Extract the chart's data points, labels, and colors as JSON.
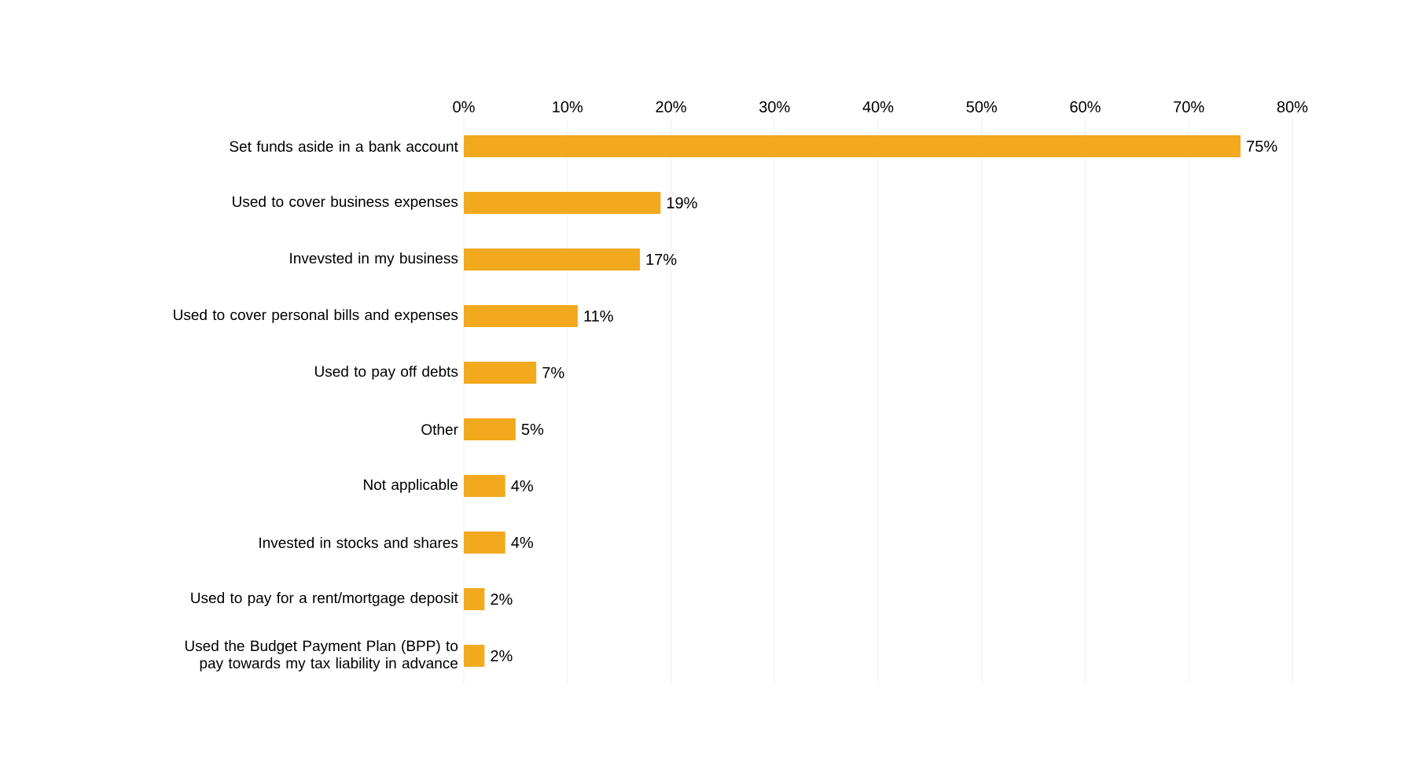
{
  "chart_data": {
    "type": "bar",
    "orientation": "horizontal",
    "categories": [
      "Set funds aside in a bank account",
      "Used to cover business expenses",
      "Invevsted in my business",
      "Used to cover personal bills and expenses",
      "Used to pay off debts",
      "Other",
      "Not applicable",
      "Invested in stocks and shares",
      "Used to pay for a rent/mortgage deposit",
      "Used the Budget Payment Plan (BPP) to pay towards my tax liability in advance"
    ],
    "values": [
      75,
      19,
      17,
      11,
      7,
      5,
      4,
      4,
      2,
      2
    ],
    "value_labels": [
      "75%",
      "19%",
      "17%",
      "11%",
      "7%",
      "5%",
      "4%",
      "4%",
      "2%",
      "2%"
    ],
    "color": "#f2a91e",
    "xlim": [
      0,
      80
    ],
    "xticks": [
      {
        "value": 0,
        "label": "0%"
      },
      {
        "value": 10,
        "label": "10%"
      },
      {
        "value": 20,
        "label": "20%"
      },
      {
        "value": 30,
        "label": "30%"
      },
      {
        "value": 40,
        "label": "40%"
      },
      {
        "value": 50,
        "label": "50%"
      },
      {
        "value": 60,
        "label": "60%"
      },
      {
        "value": 70,
        "label": "70%"
      },
      {
        "value": 80,
        "label": "80%"
      }
    ],
    "grid": "x"
  }
}
